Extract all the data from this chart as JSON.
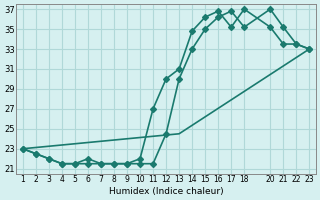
{
  "xlabel": "Humidex (Indice chaleur)",
  "ylabel": "",
  "bg_color": "#d6f0f0",
  "line_color": "#1a7a6e",
  "grid_color": "#b0d8d8",
  "xlim": [
    0.5,
    23.5
  ],
  "ylim": [
    20.5,
    37.5
  ],
  "xticks": [
    1,
    2,
    3,
    4,
    5,
    6,
    7,
    8,
    9,
    10,
    11,
    12,
    13,
    14,
    15,
    16,
    17,
    18,
    20,
    21,
    22,
    23
  ],
  "yticks": [
    21,
    23,
    25,
    27,
    29,
    31,
    33,
    35,
    37
  ],
  "series": [
    {
      "x": [
        1,
        2,
        3,
        4,
        5,
        6,
        7,
        8,
        9,
        10,
        11,
        12,
        13,
        14,
        15,
        16,
        17,
        18,
        20,
        21,
        22,
        23
      ],
      "y": [
        23,
        22.5,
        22,
        21.5,
        21.5,
        22,
        21.5,
        21.5,
        21.5,
        22,
        27,
        30,
        31,
        34.8,
        36.2,
        36.8,
        35.2,
        37,
        35.2,
        33.5,
        33.5,
        33
      ],
      "marker": "D",
      "markersize": 3,
      "linewidth": 1.2
    },
    {
      "x": [
        1,
        2,
        3,
        4,
        5,
        6,
        7,
        8,
        9,
        10,
        11,
        12,
        13,
        14,
        15,
        16,
        17,
        18,
        20,
        21,
        22,
        23
      ],
      "y": [
        23,
        22.5,
        22,
        21.5,
        21.5,
        21.5,
        21.5,
        21.5,
        21.5,
        21.5,
        21.5,
        24.5,
        30,
        33,
        35,
        36.2,
        36.8,
        35.2,
        37,
        35.2,
        33.5,
        33
      ],
      "marker": "D",
      "markersize": 3,
      "linewidth": 1.2
    },
    {
      "x": [
        1,
        13,
        23
      ],
      "y": [
        23,
        24.5,
        33
      ],
      "marker": "",
      "markersize": 0,
      "linewidth": 1.2
    }
  ]
}
